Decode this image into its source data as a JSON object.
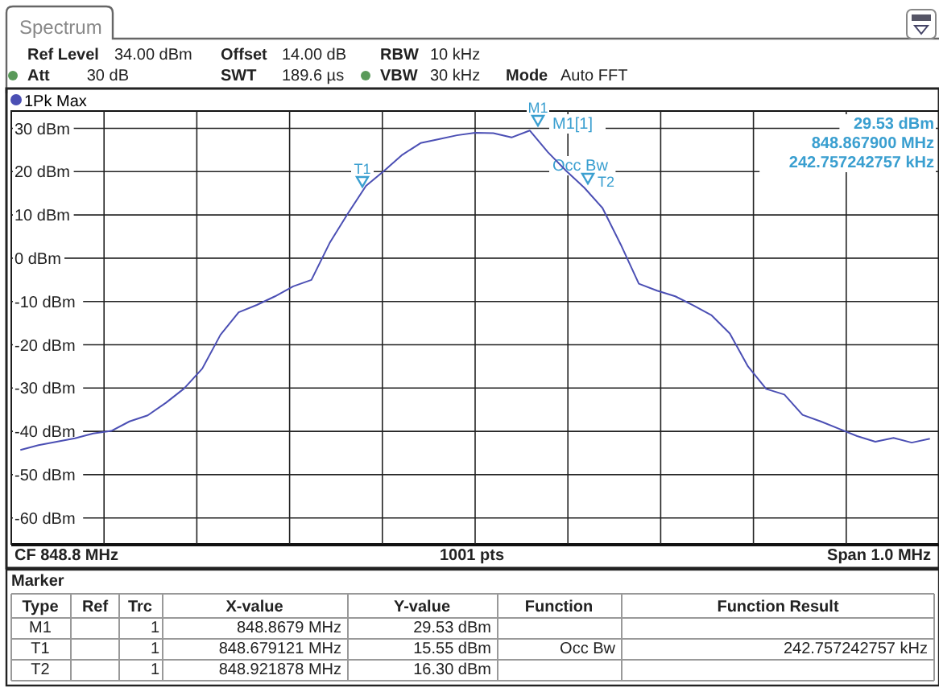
{
  "chart_data": {
    "type": "line",
    "legend": "top left",
    "grid": true,
    "tick_labels": "y",
    "categories": [
      null,
      null,
      null,
      null,
      null,
      null,
      null,
      null,
      null,
      null,
      null,
      null,
      null,
      null,
      null,
      null,
      null,
      null,
      null,
      null,
      null,
      null,
      null,
      null,
      null,
      null,
      null,
      null,
      null,
      null,
      null,
      null,
      null,
      null,
      null,
      null,
      null,
      null,
      null,
      null,
      null,
      null,
      null,
      null,
      null,
      null,
      null,
      null,
      null,
      null,
      null
    ],
    "ylim": [
      -66,
      34
    ],
    "yticks": [
      {
        "value": 30,
        "label": "30 dBm"
      },
      {
        "value": 20,
        "label": "20 dBm"
      },
      {
        "value": 10,
        "label": "10 dBm"
      },
      {
        "value": 0,
        "label": "0 dBm"
      },
      {
        "value": -10,
        "label": "-10 dBm"
      },
      {
        "value": -20,
        "label": "-20 dBm"
      },
      {
        "value": -30,
        "label": "-30 dBm"
      },
      {
        "value": -40,
        "label": "-40 dBm"
      },
      {
        "value": -50,
        "label": "-50 dBm"
      },
      {
        "value": -60,
        "label": "-60 dBm"
      }
    ],
    "series": [
      {
        "name": "1Pk Max",
        "color": "#4b4fb4",
        "values": [
          -44.3,
          -43.2,
          -42.4,
          -41.6,
          -40.5,
          -39.9,
          -37.7,
          -36.3,
          -33.4,
          -30.1,
          -25.5,
          -17.7,
          -12.5,
          -10.8,
          -8.8,
          -6.5,
          -5,
          3.5,
          10.3,
          16.7,
          20.2,
          23.9,
          26.6,
          27.5,
          28.4,
          29,
          28.9,
          27.9,
          29.5,
          24.5,
          20.2,
          16.3,
          11.6,
          3.2,
          -5.9,
          -7.5,
          -8.8,
          -10.9,
          -13.2,
          -17.4,
          -25,
          -30.2,
          -31.5,
          -36.2,
          -37.7,
          -39.4,
          -41.1,
          -42.4,
          -41.5,
          -42.6,
          -41.7
        ]
      }
    ],
    "annotations": [
      "Spectrum",
      "Ref Level",
      "34.00 dBm",
      "Offset",
      "14.00 dB",
      "RBW",
      "10 kHz",
      "Att",
      "30 dB",
      "SWT",
      "189.6 µs",
      "VBW",
      "30 kHz",
      "Mode",
      "Auto FFT",
      "CF 848.8 MHz",
      "1001 pts",
      "Span 1.0 MHz",
      "M1[1]",
      "29.53 dBm",
      "848.867900 MHz",
      "242.757242757 kHz",
      "Occ Bw",
      "Marker",
      "Type",
      "Ref",
      "Trc",
      "X-value",
      "Y-value",
      "Function",
      "Function Result",
      "M1",
      "1",
      "848.8679 MHz",
      "29.53 dBm",
      "T1",
      "1",
      "848.679121 MHz",
      "15.55 dBm",
      "Occ Bw",
      "242.757242757 kHz",
      "T2",
      "1",
      "848.921878 MHz",
      "16.30 dBm",
      "M1",
      "T1",
      "T2"
    ]
  }
}
